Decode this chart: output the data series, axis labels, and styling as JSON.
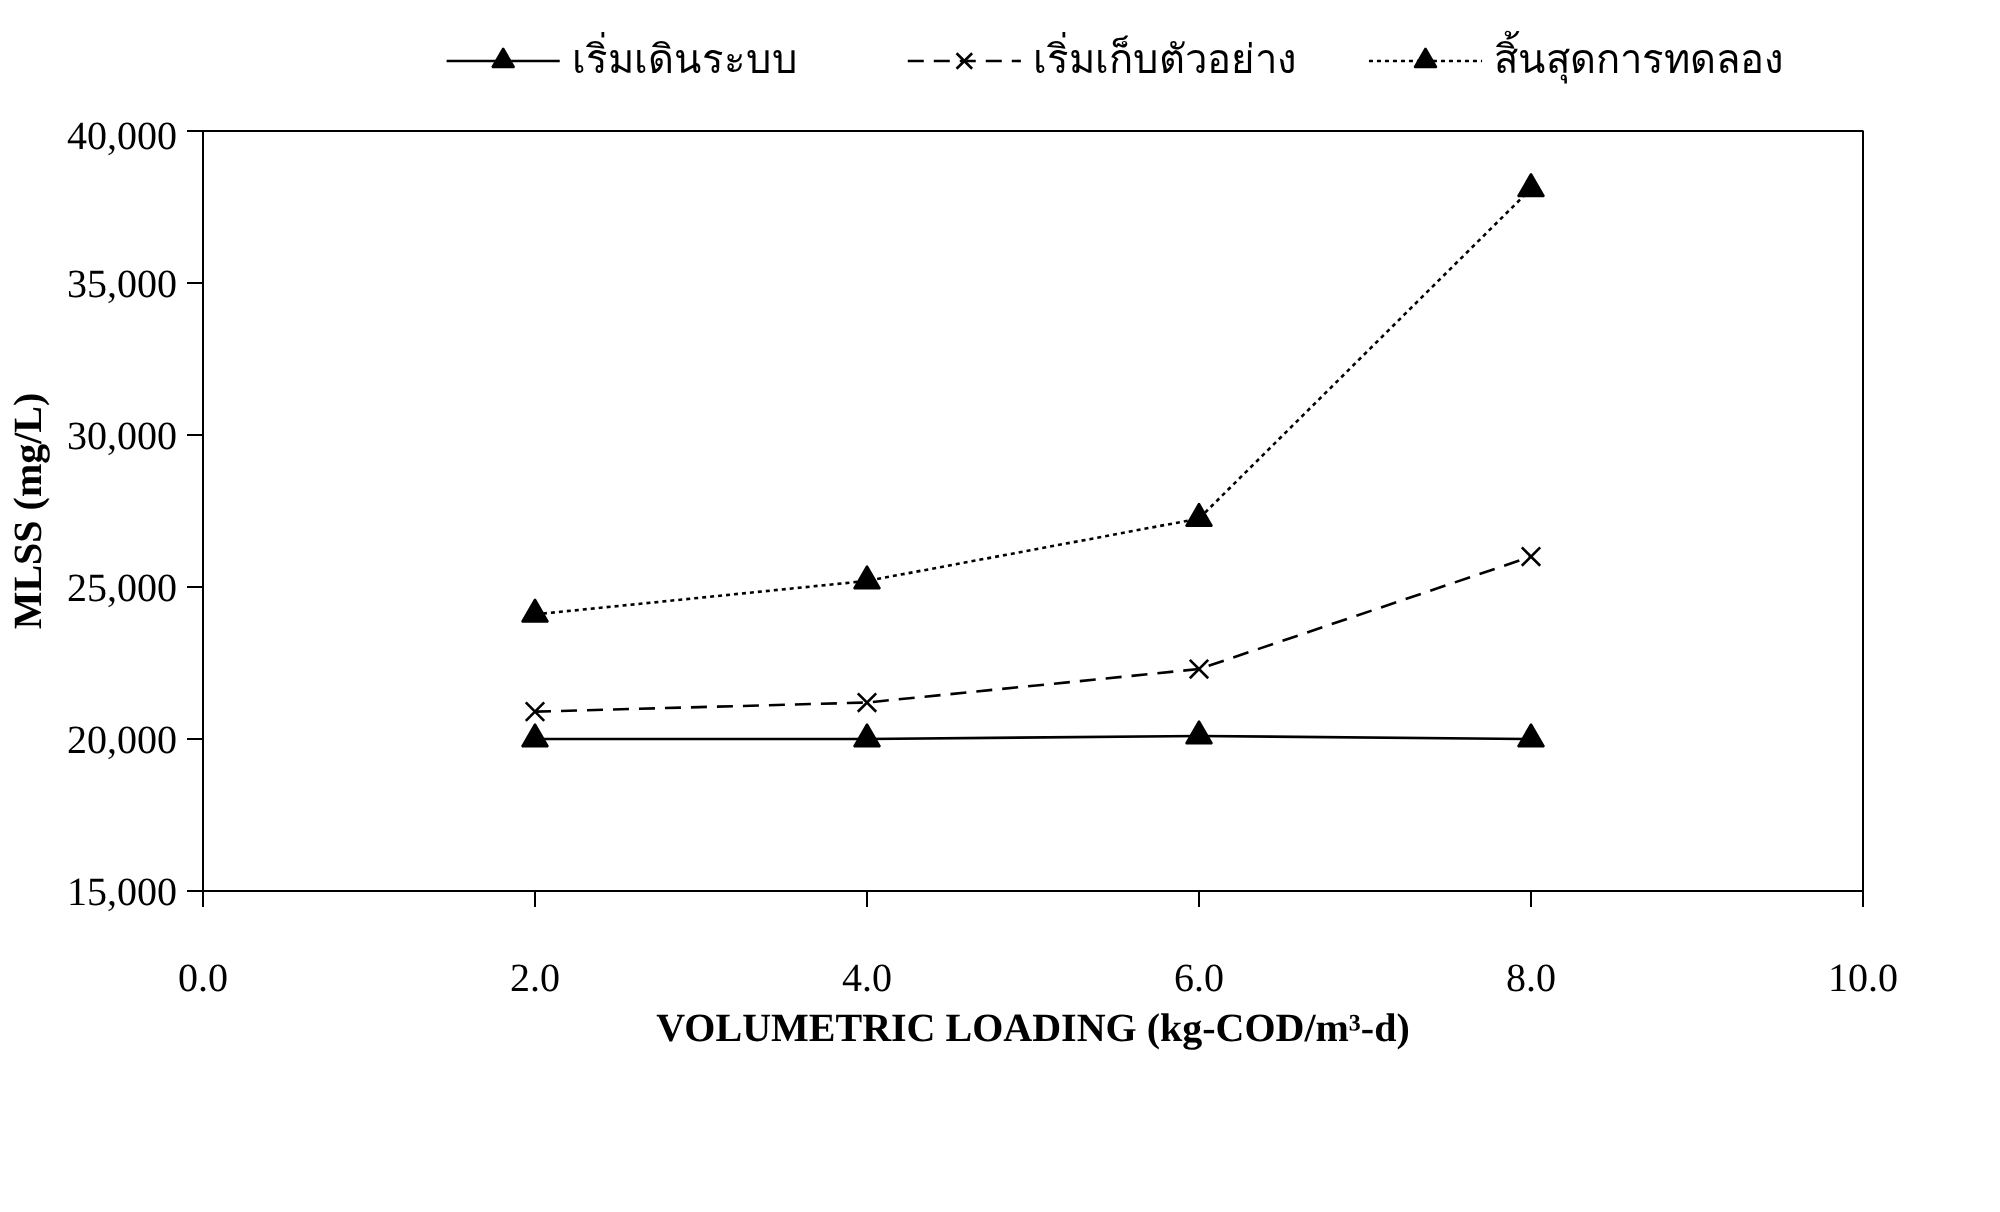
{
  "chart_data": {
    "type": "line",
    "xlabel": "VOLUMETRIC LOADING (kg-COD/m³-d)",
    "ylabel": "MLSS (mg/L)",
    "x": [
      2.0,
      4.0,
      6.0,
      8.0
    ],
    "series": [
      {
        "name": "เริ่มเดินระบบ",
        "color": "#000000",
        "marker": "triangle",
        "line_style": "solid",
        "values": [
          20000,
          20000,
          20100,
          20000
        ]
      },
      {
        "name": "เริ่มเก็บตัวอย่าง",
        "color": "#000000",
        "marker": "cross",
        "line_style": "dashed",
        "values": [
          20900,
          21200,
          22300,
          26000
        ]
      },
      {
        "name": "สิ้นสุดการทดลอง",
        "color": "#000000",
        "marker": "triangle",
        "line_style": "dotted",
        "values": [
          24100,
          25200,
          27250,
          38100
        ]
      }
    ],
    "xlim": [
      0,
      10
    ],
    "ylim": [
      15000,
      40000
    ],
    "xticks": [
      {
        "value": 0,
        "label": "0.0"
      },
      {
        "value": 2,
        "label": "2.0"
      },
      {
        "value": 4,
        "label": "4.0"
      },
      {
        "value": 6,
        "label": "6.0"
      },
      {
        "value": 8,
        "label": "8.0"
      },
      {
        "value": 10,
        "label": "10.0"
      }
    ],
    "yticks": [
      {
        "value": 15000,
        "label": "15,000"
      },
      {
        "value": 20000,
        "label": "20,000"
      },
      {
        "value": 25000,
        "label": "25,000"
      },
      {
        "value": 30000,
        "label": "30,000"
      },
      {
        "value": 35000,
        "label": "35,000"
      },
      {
        "value": 40000,
        "label": "40,000"
      }
    ],
    "grid": false,
    "legend": "top"
  }
}
